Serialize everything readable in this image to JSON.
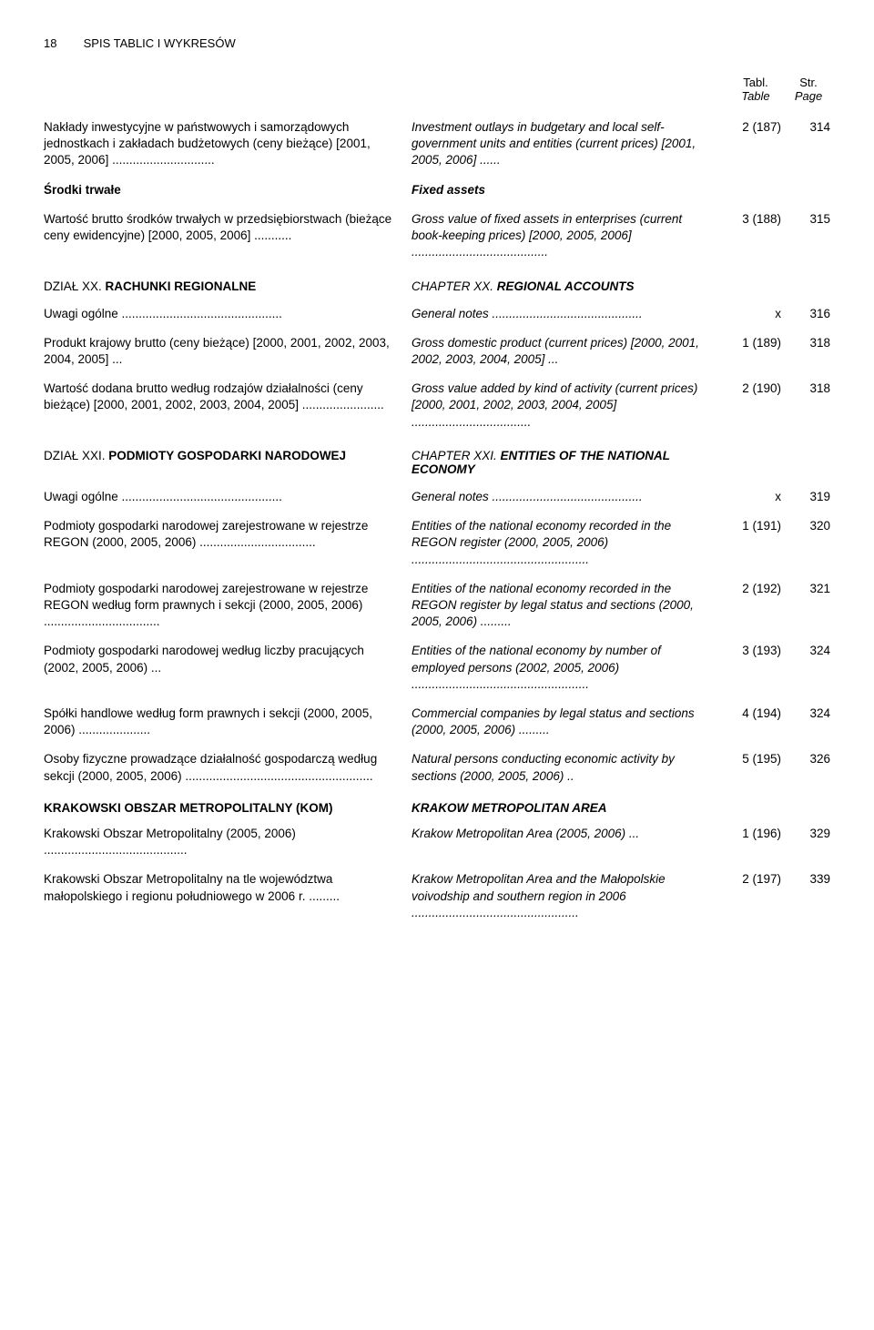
{
  "header": {
    "page": "18",
    "title": "SPIS TABLIC I WYKRESÓW"
  },
  "colHeaders": {
    "tabl": "Tabl.",
    "table": "Table",
    "str": "Str.",
    "page": "Page"
  },
  "rows": [
    {
      "pl": "Nakłady inwestycyjne w państwowych i samorządowych jednostkach i zakładach budżetowych (ceny bieżące) [2001, 2005, 2006] ..............................",
      "en": "Investment outlays in budgetary and local self-government units and entities (current prices) [2001, 2005, 2006] ......",
      "tbl": "2 (187)",
      "pg": "314"
    },
    {
      "bold": true,
      "pl": "Środki trwałe",
      "en": "Fixed assets",
      "tbl": "",
      "pg": ""
    },
    {
      "pl": "Wartość brutto środków trwałych w przedsiębiorstwach (bieżące ceny ewidencyjne) [2000, 2005, 2006] ...........",
      "en": "Gross value of fixed assets in enterprises (current book-keeping prices) [2000, 2005, 2006] ........................................",
      "tbl": "3 (188)",
      "pg": "315"
    }
  ],
  "sectionXX": {
    "labelPl": "DZIAŁ XX.",
    "titlePl": "RACHUNKI REGIONALNE",
    "labelEn": "CHAPTER XX.",
    "titleEn": "REGIONAL ACCOUNTS"
  },
  "rowsXX": [
    {
      "pl": "Uwagi ogólne ...............................................",
      "en": "General notes ............................................",
      "tbl": "x",
      "pg": "316"
    },
    {
      "pl": "Produkt krajowy brutto (ceny bieżące) [2000, 2001, 2002, 2003, 2004, 2005] ...",
      "en": "Gross domestic product (current prices) [2000, 2001, 2002, 2003, 2004, 2005] ...",
      "tbl": "1 (189)",
      "pg": "318"
    },
    {
      "pl": "Wartość dodana brutto według rodzajów działalności (ceny bieżące) [2000, 2001, 2002, 2003, 2004, 2005] ........................",
      "en": "Gross value added by kind of activity (current prices) [2000, 2001, 2002, 2003, 2004, 2005] ...................................",
      "tbl": "2 (190)",
      "pg": "318"
    }
  ],
  "sectionXXI": {
    "labelPl": "DZIAŁ XXI.",
    "titlePl": "PODMIOTY GOSPODARKI NARODOWEJ",
    "labelEn": "CHAPTER XXI.",
    "titleEn": "ENTITIES OF THE NATIONAL ECONOMY"
  },
  "rowsXXI": [
    {
      "pl": "Uwagi ogólne ...............................................",
      "en": "General notes ............................................",
      "tbl": "x",
      "pg": "319"
    },
    {
      "pl": "Podmioty gospodarki narodowej zarejestrowane w rejestrze REGON (2000, 2005, 2006) ..................................",
      "en": "Entities of the national economy recorded in the REGON register (2000, 2005, 2006) ....................................................",
      "tbl": "1 (191)",
      "pg": "320"
    },
    {
      "pl": "Podmioty gospodarki narodowej zarejestrowane w rejestrze REGON według form prawnych i sekcji (2000, 2005, 2006) ..................................",
      "en": "Entities of the national economy recorded in the REGON register by legal status and sections (2000, 2005, 2006) .........",
      "tbl": "2 (192)",
      "pg": "321"
    },
    {
      "pl": "Podmioty gospodarki narodowej według liczby pracujących (2002, 2005, 2006) ...",
      "en": "Entities of the national economy by number of employed persons (2002, 2005, 2006) ....................................................",
      "tbl": "3 (193)",
      "pg": "324"
    },
    {
      "pl": "Spółki handlowe według form prawnych i sekcji (2000, 2005, 2006) .....................",
      "en": "Commercial companies by legal status and sections (2000, 2005, 2006) .........",
      "tbl": "4 (194)",
      "pg": "324"
    },
    {
      "pl": "Osoby fizyczne prowadzące działalność gospodarczą według sekcji (2000, 2005, 2006) .......................................................",
      "en": "Natural persons conducting economic activity by sections (2000, 2005, 2006) ..",
      "tbl": "5 (195)",
      "pg": "326"
    }
  ],
  "kom": {
    "pl": "KRAKOWSKI OBSZAR METROPOLITALNY (KOM)",
    "en": "KRAKOW METROPOLITAN AREA"
  },
  "rowsKOM": [
    {
      "pl": "Krakowski Obszar Metropolitalny (2005, 2006) ..........................................",
      "en": "Krakow Metropolitan Area (2005, 2006) ...",
      "tbl": "1 (196)",
      "pg": "329"
    },
    {
      "pl": "Krakowski Obszar Metropolitalny na tle województwa małopolskiego i regionu południowego w 2006 r. .........",
      "en": "Krakow Metropolitan Area and the Małopolskie voivodship and southern region in 2006 .................................................",
      "tbl": "2 (197)",
      "pg": "339"
    }
  ]
}
